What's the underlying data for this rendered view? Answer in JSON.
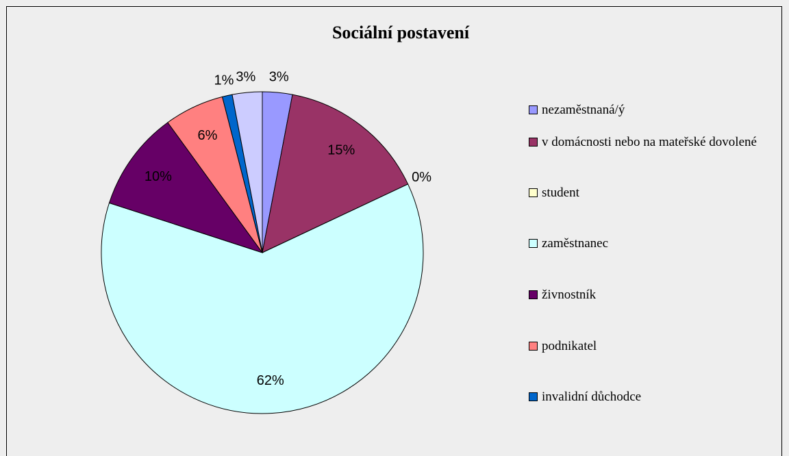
{
  "chart_data": {
    "type": "pie",
    "title": "Sociální postavení",
    "categories": [
      "nezaměstnaná/ý",
      "v domácnosti nebo na mateřské dovolené",
      "student",
      "zaměstnanec",
      "živnostník",
      "podnikatel",
      "invalidní důchodce",
      null
    ],
    "values": [
      3,
      15,
      0,
      62,
      10,
      6,
      1,
      3
    ],
    "value_labels": [
      "3%",
      "15%",
      "0%",
      "62%",
      "10%",
      "6%",
      "1%",
      "3%"
    ],
    "colors": [
      "#9999ff",
      "#993366",
      "#ffffcc",
      "#ccffff",
      "#660066",
      "#ff8080",
      "#0066cc",
      "#ccccff"
    ],
    "legend": "right"
  }
}
